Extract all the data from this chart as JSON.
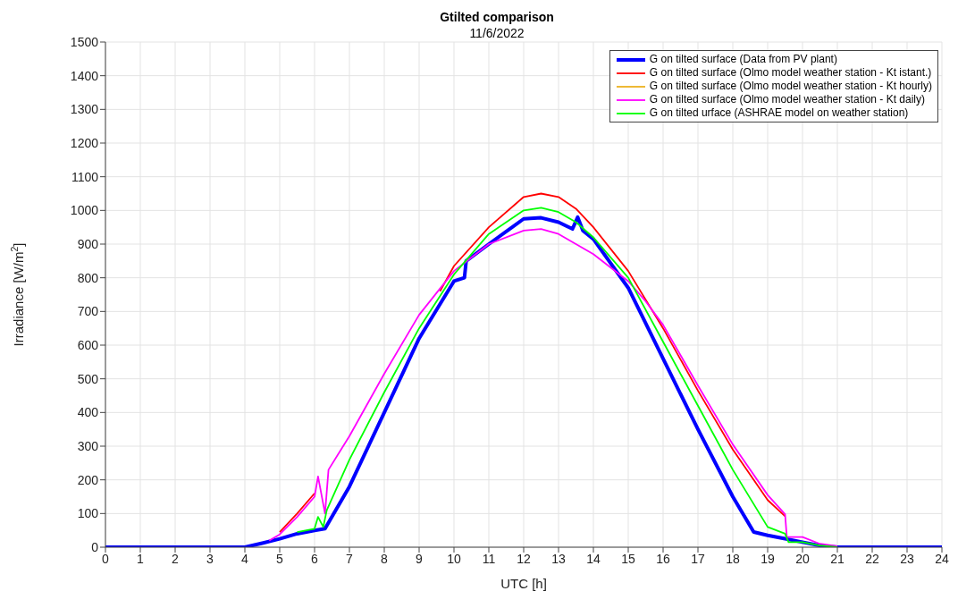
{
  "chart_data": {
    "type": "line",
    "title": "Gtilted comparison",
    "subtitle": "11/6/2022",
    "xlabel": "UTC [h]",
    "ylabel": "Irradiance [W/m$^{2}$]",
    "xlim": [
      0,
      24
    ],
    "xticks": [
      0,
      1,
      2,
      3,
      4,
      5,
      6,
      7,
      8,
      9,
      10,
      11,
      12,
      13,
      14,
      15,
      16,
      17,
      18,
      19,
      20,
      21,
      22,
      23,
      24
    ],
    "ylim": [
      0,
      1500
    ],
    "yticks": [
      0,
      100,
      200,
      300,
      400,
      500,
      600,
      700,
      800,
      900,
      1000,
      1100,
      1200,
      1300,
      1400,
      1500
    ],
    "grid": true,
    "legend": "top right",
    "marker": "none",
    "line_style": "solid",
    "series": [
      {
        "name": "G on tilted surface (Data from PV plant)",
        "color": "#0000ff",
        "x": [
          0,
          1,
          2,
          3,
          4,
          4.5,
          5,
          5.5,
          6,
          6.3,
          7,
          8,
          9,
          10,
          10.3,
          10.35,
          11,
          12,
          12.5,
          13,
          13.4,
          13.55,
          13.7,
          14,
          15,
          16,
          17,
          18,
          18.6,
          19,
          19.5,
          20,
          20.5,
          21,
          22,
          23,
          24
        ],
        "values": [
          0,
          0,
          0,
          0,
          0,
          12,
          25,
          40,
          50,
          55,
          180,
          400,
          620,
          790,
          800,
          850,
          900,
          975,
          978,
          965,
          945,
          980,
          940,
          915,
          770,
          560,
          350,
          150,
          45,
          35,
          25,
          15,
          5,
          0,
          0,
          0,
          0
        ]
      },
      {
        "name": "G on tilted surface (Olmo model weather station - Kt istant.)",
        "color": "#ff0000",
        "x": [
          5,
          5.5,
          6,
          6.05,
          9.6,
          10,
          11,
          12,
          12.5,
          13,
          13.5,
          14,
          15,
          16,
          17,
          18,
          19,
          19.5
        ],
        "values": [
          45,
          100,
          160,
          null,
          760,
          835,
          950,
          1040,
          1050,
          1040,
          1005,
          950,
          820,
          650,
          465,
          290,
          140,
          92
        ]
      },
      {
        "name": "G on tilted surface (Olmo model weather station - Kt hourly)",
        "color": "#edb120"
      },
      {
        "name": "G on tilted surface (Olmo model weather station - Kt daily)",
        "color": "#ff00ff",
        "x": [
          4.7,
          5,
          5.5,
          6,
          6.1,
          6.3,
          6.4,
          7,
          8,
          9,
          10,
          11,
          12,
          12.5,
          13,
          14,
          15,
          15.5,
          16,
          17,
          18,
          19,
          19.5,
          19.55,
          20,
          20.5,
          21
        ],
        "values": [
          20,
          38,
          90,
          150,
          210,
          100,
          230,
          330,
          515,
          690,
          820,
          900,
          940,
          945,
          930,
          870,
          790,
          730,
          660,
          480,
          305,
          155,
          98,
          30,
          30,
          10,
          3
        ]
      },
      {
        "name": "G on tilted urface (ASHRAE model on weather station)",
        "color": "#00ff00",
        "x": [
          5.5,
          6,
          6.1,
          6.25,
          6.35,
          7,
          8,
          9,
          10,
          11,
          12,
          12.5,
          13,
          13.5,
          14,
          15,
          16,
          17,
          18,
          19,
          19.5,
          19.6,
          20,
          20.5,
          21
        ],
        "values": [
          45,
          55,
          90,
          60,
          110,
          260,
          460,
          650,
          810,
          930,
          1000,
          1008,
          995,
          965,
          920,
          800,
          610,
          420,
          230,
          60,
          40,
          15,
          15,
          5,
          0
        ]
      }
    ]
  }
}
